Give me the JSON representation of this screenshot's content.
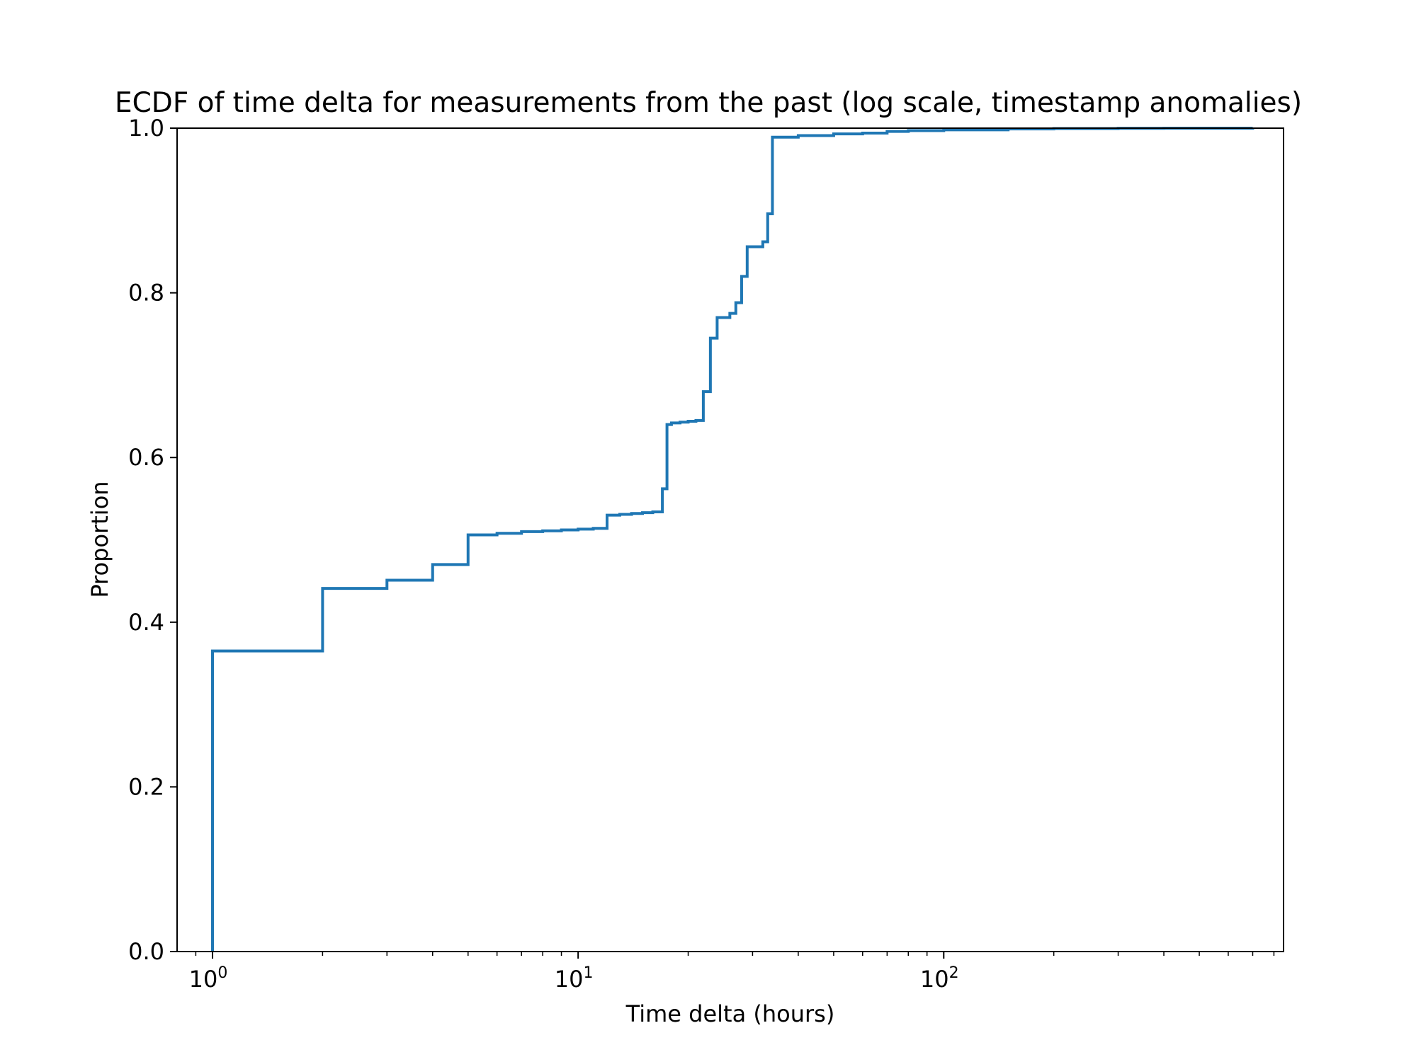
{
  "chart_data": {
    "type": "line",
    "title": "ECDF of time delta for measurements from the past (log scale, timestamp anomalies)",
    "xlabel": "Time delta (hours)",
    "ylabel": "Proportion",
    "xscale": "log",
    "xlim": [
      0.8,
      850
    ],
    "ylim": [
      0.0,
      1.0
    ],
    "grid": false,
    "legend": "none",
    "line_color": "#1f77b4",
    "xticks": [
      {
        "base": "10",
        "exp": "0",
        "value": 1
      },
      {
        "base": "10",
        "exp": "1",
        "value": 10
      },
      {
        "base": "10",
        "exp": "2",
        "value": 100
      }
    ],
    "yticks": [
      "0.0",
      "0.2",
      "0.4",
      "0.6",
      "0.8",
      "1.0"
    ],
    "series": [
      {
        "step": "post",
        "x": [
          1,
          1,
          2,
          3,
          4,
          5,
          6,
          7,
          8,
          9,
          10,
          11,
          12,
          13,
          14,
          15,
          16,
          17,
          17.5,
          18,
          19,
          20,
          21,
          22,
          23,
          24,
          26,
          27,
          28,
          29,
          32,
          33,
          34,
          40,
          50,
          60,
          70,
          80,
          100,
          150,
          200,
          300,
          400,
          700
        ],
        "y": [
          0.0,
          0.365,
          0.441,
          0.451,
          0.47,
          0.506,
          0.508,
          0.51,
          0.511,
          0.512,
          0.513,
          0.514,
          0.53,
          0.531,
          0.532,
          0.533,
          0.534,
          0.562,
          0.64,
          0.642,
          0.643,
          0.644,
          0.645,
          0.68,
          0.745,
          0.77,
          0.775,
          0.788,
          0.82,
          0.856,
          0.862,
          0.896,
          0.989,
          0.991,
          0.993,
          0.994,
          0.996,
          0.997,
          0.998,
          0.999,
          0.9995,
          0.9998,
          0.9999,
          1.0
        ]
      }
    ]
  }
}
